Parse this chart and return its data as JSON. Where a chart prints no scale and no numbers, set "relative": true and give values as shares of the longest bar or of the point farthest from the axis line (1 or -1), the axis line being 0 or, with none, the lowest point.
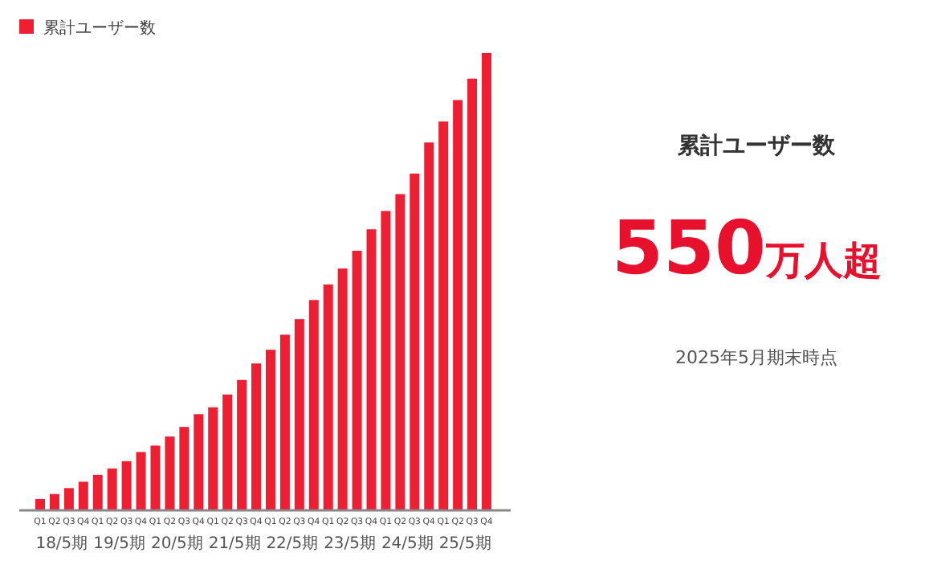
{
  "chart_data": [
    {
      "type": "bar",
      "relative": true,
      "legend": "top left",
      "tick_labels": "x",
      "categories": [
        "Q1",
        "Q2",
        "Q3",
        "Q4",
        "Q1",
        "Q2",
        "Q3",
        "Q4",
        "Q1",
        "Q2",
        "Q3",
        "Q4",
        "Q1",
        "Q2",
        "Q3",
        "Q4",
        "Q1",
        "Q2",
        "Q3",
        "Q4",
        "Q1",
        "Q2",
        "Q3",
        "Q4",
        "Q1",
        "Q2",
        "Q3",
        "Q4",
        "Q1",
        "Q2",
        "Q3",
        "Q4"
      ],
      "series": [
        {
          "name": "累計ユーザー数",
          "color": "#ee1f33",
          "values": [
            0.023,
            0.034,
            0.047,
            0.061,
            0.076,
            0.09,
            0.106,
            0.126,
            0.14,
            0.16,
            0.181,
            0.209,
            0.224,
            0.252,
            0.284,
            0.32,
            0.35,
            0.383,
            0.417,
            0.459,
            0.493,
            0.528,
            0.567,
            0.614,
            0.654,
            0.691,
            0.736,
            0.804,
            0.85,
            0.897,
            0.944,
            1
          ]
        }
      ],
      "annotations": [
        "18/5期",
        "19/5期",
        "20/5期",
        "21/5期",
        "22/5期",
        "23/5期",
        "24/5期",
        "25/5期"
      ]
    },
    {
      "type": "other",
      "title": "累計ユーザー数",
      "annotations": [
        "550",
        "万人超",
        "2025年5月期末時点"
      ]
    }
  ]
}
